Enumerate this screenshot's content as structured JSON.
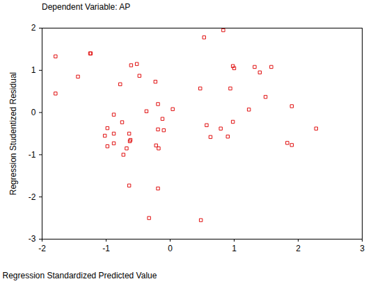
{
  "chart_data": {
    "type": "scatter",
    "title": "Dependent Variable: AP",
    "x_label": "Regression Standardized Predicted Value",
    "y_label": "Regression Studentized Residual",
    "x": [
      -1.79,
      -1.79,
      -1.44,
      -1.25,
      -1.24,
      -1.02,
      -0.98,
      -0.98,
      -0.88,
      -0.88,
      -0.88,
      -0.78,
      -0.75,
      -0.73,
      -0.68,
      -0.64,
      -0.64,
      -0.63,
      -0.61,
      -0.52,
      -0.48,
      -0.37,
      -0.23,
      -0.22,
      -0.19,
      -0.18,
      -0.19,
      -0.19,
      -0.33,
      -0.12,
      0.04,
      -0.1,
      0.47,
      0.53,
      0.83,
      0.57,
      0.63,
      0.79,
      0.9,
      0.94,
      0.98,
      1.0,
      0.98,
      1.23,
      1.32,
      1.4,
      1.49,
      1.58,
      1.83,
      1.9,
      1.9,
      2.28,
      0.48,
      -0.62
    ],
    "y": [
      1.33,
      0.45,
      0.85,
      1.4,
      1.4,
      -0.55,
      -0.8,
      -0.37,
      -0.05,
      -0.5,
      -0.73,
      0.67,
      -0.23,
      -1.0,
      -0.85,
      -1.73,
      -0.5,
      -0.68,
      1.12,
      1.15,
      0.87,
      0.03,
      0.73,
      -0.78,
      0.2,
      -0.85,
      -0.4,
      -1.8,
      -2.5,
      -0.15,
      0.08,
      -0.42,
      0.57,
      1.78,
      1.95,
      -0.3,
      -0.58,
      -0.38,
      -0.57,
      0.57,
      1.1,
      1.05,
      -0.22,
      0.07,
      1.08,
      0.95,
      0.37,
      1.08,
      -0.72,
      0.15,
      -0.77,
      -0.38,
      -2.55,
      -0.65
    ],
    "xlim": [
      -2,
      3
    ],
    "xticks": [
      -2,
      -1,
      0,
      1,
      2,
      3
    ],
    "ylim": [
      -3,
      2
    ],
    "yticks": [
      -3,
      -2,
      -1,
      0,
      1,
      2
    ],
    "color": "#e01010",
    "marker": "square",
    "grid": false
  }
}
